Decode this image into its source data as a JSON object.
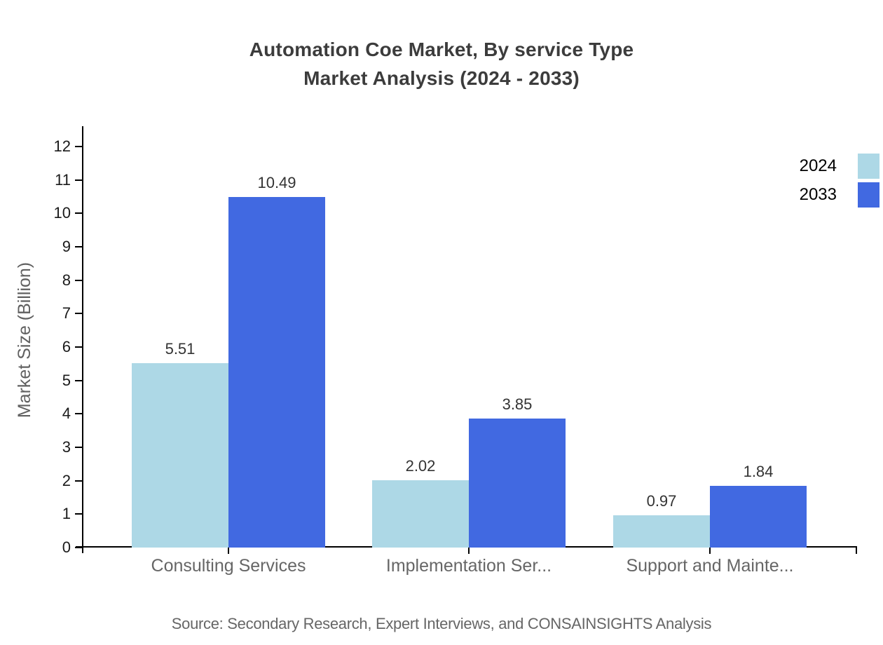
{
  "title": {
    "line1": "Automation Coe Market, By service Type",
    "line2": "Market Analysis (2024 - 2033)"
  },
  "chart_data": {
    "type": "bar",
    "categories": [
      "Consulting Services",
      "Implementation Ser...",
      "Support and Mainte..."
    ],
    "series": [
      {
        "name": "2024",
        "color": "#ADD8E6",
        "values": [
          5.51,
          2.02,
          0.97
        ]
      },
      {
        "name": "2033",
        "color": "#4169E1",
        "values": [
          10.49,
          3.85,
          1.84
        ]
      }
    ],
    "title": "Automation Coe Market, By service Type Market Analysis (2024 - 2033)",
    "xlabel": "",
    "ylabel": "Market Size (Billion)",
    "ylim": [
      0,
      12
    ],
    "yticks": [
      0,
      1,
      2,
      3,
      4,
      5,
      6,
      7,
      8,
      9,
      10,
      11,
      12
    ],
    "grid": false,
    "legend_position": "top-right",
    "value_labels": [
      "5.51",
      "10.49",
      "2.02",
      "3.85",
      "0.97",
      "1.84"
    ]
  },
  "source": "Source: Secondary Research, Expert Interviews, and CONSAINSIGHTS Analysis",
  "colors": {
    "axis": "#000000",
    "title_text": "#3c3c3c",
    "tick_text": "#1a1a1a",
    "category_text": "#666666",
    "value_text": "#333333",
    "source_text": "#666666"
  }
}
